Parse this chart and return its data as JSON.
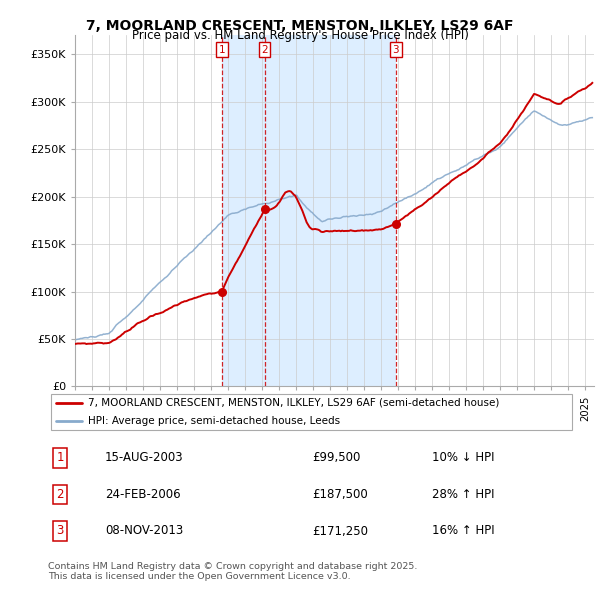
{
  "title_line1": "7, MOORLAND CRESCENT, MENSTON, ILKLEY, LS29 6AF",
  "title_line2": "Price paid vs. HM Land Registry's House Price Index (HPI)",
  "ylim": [
    0,
    370000
  ],
  "yticks": [
    0,
    50000,
    100000,
    150000,
    200000,
    250000,
    300000,
    350000
  ],
  "ytick_labels": [
    "£0",
    "£50K",
    "£100K",
    "£150K",
    "£200K",
    "£250K",
    "£300K",
    "£350K"
  ],
  "xlim_start": 1995.0,
  "xlim_end": 2025.5,
  "transactions": [
    {
      "num": 1,
      "date": "15-AUG-2003",
      "price": 99500,
      "year": 2003.62,
      "label": "10% ↓ HPI"
    },
    {
      "num": 2,
      "date": "24-FEB-2006",
      "price": 187500,
      "year": 2006.14,
      "label": "28% ↑ HPI"
    },
    {
      "num": 3,
      "date": "08-NOV-2013",
      "price": 171250,
      "year": 2013.85,
      "label": "16% ↑ HPI"
    }
  ],
  "legend_line1": "7, MOORLAND CRESCENT, MENSTON, ILKLEY, LS29 6AF (semi-detached house)",
  "legend_line2": "HPI: Average price, semi-detached house, Leeds",
  "footer_line1": "Contains HM Land Registry data © Crown copyright and database right 2025.",
  "footer_line2": "This data is licensed under the Open Government Licence v3.0.",
  "red_color": "#cc0000",
  "blue_color": "#88aacc",
  "shade_color": "#ddeeff",
  "bg_color": "#ffffff",
  "grid_color": "#cccccc"
}
